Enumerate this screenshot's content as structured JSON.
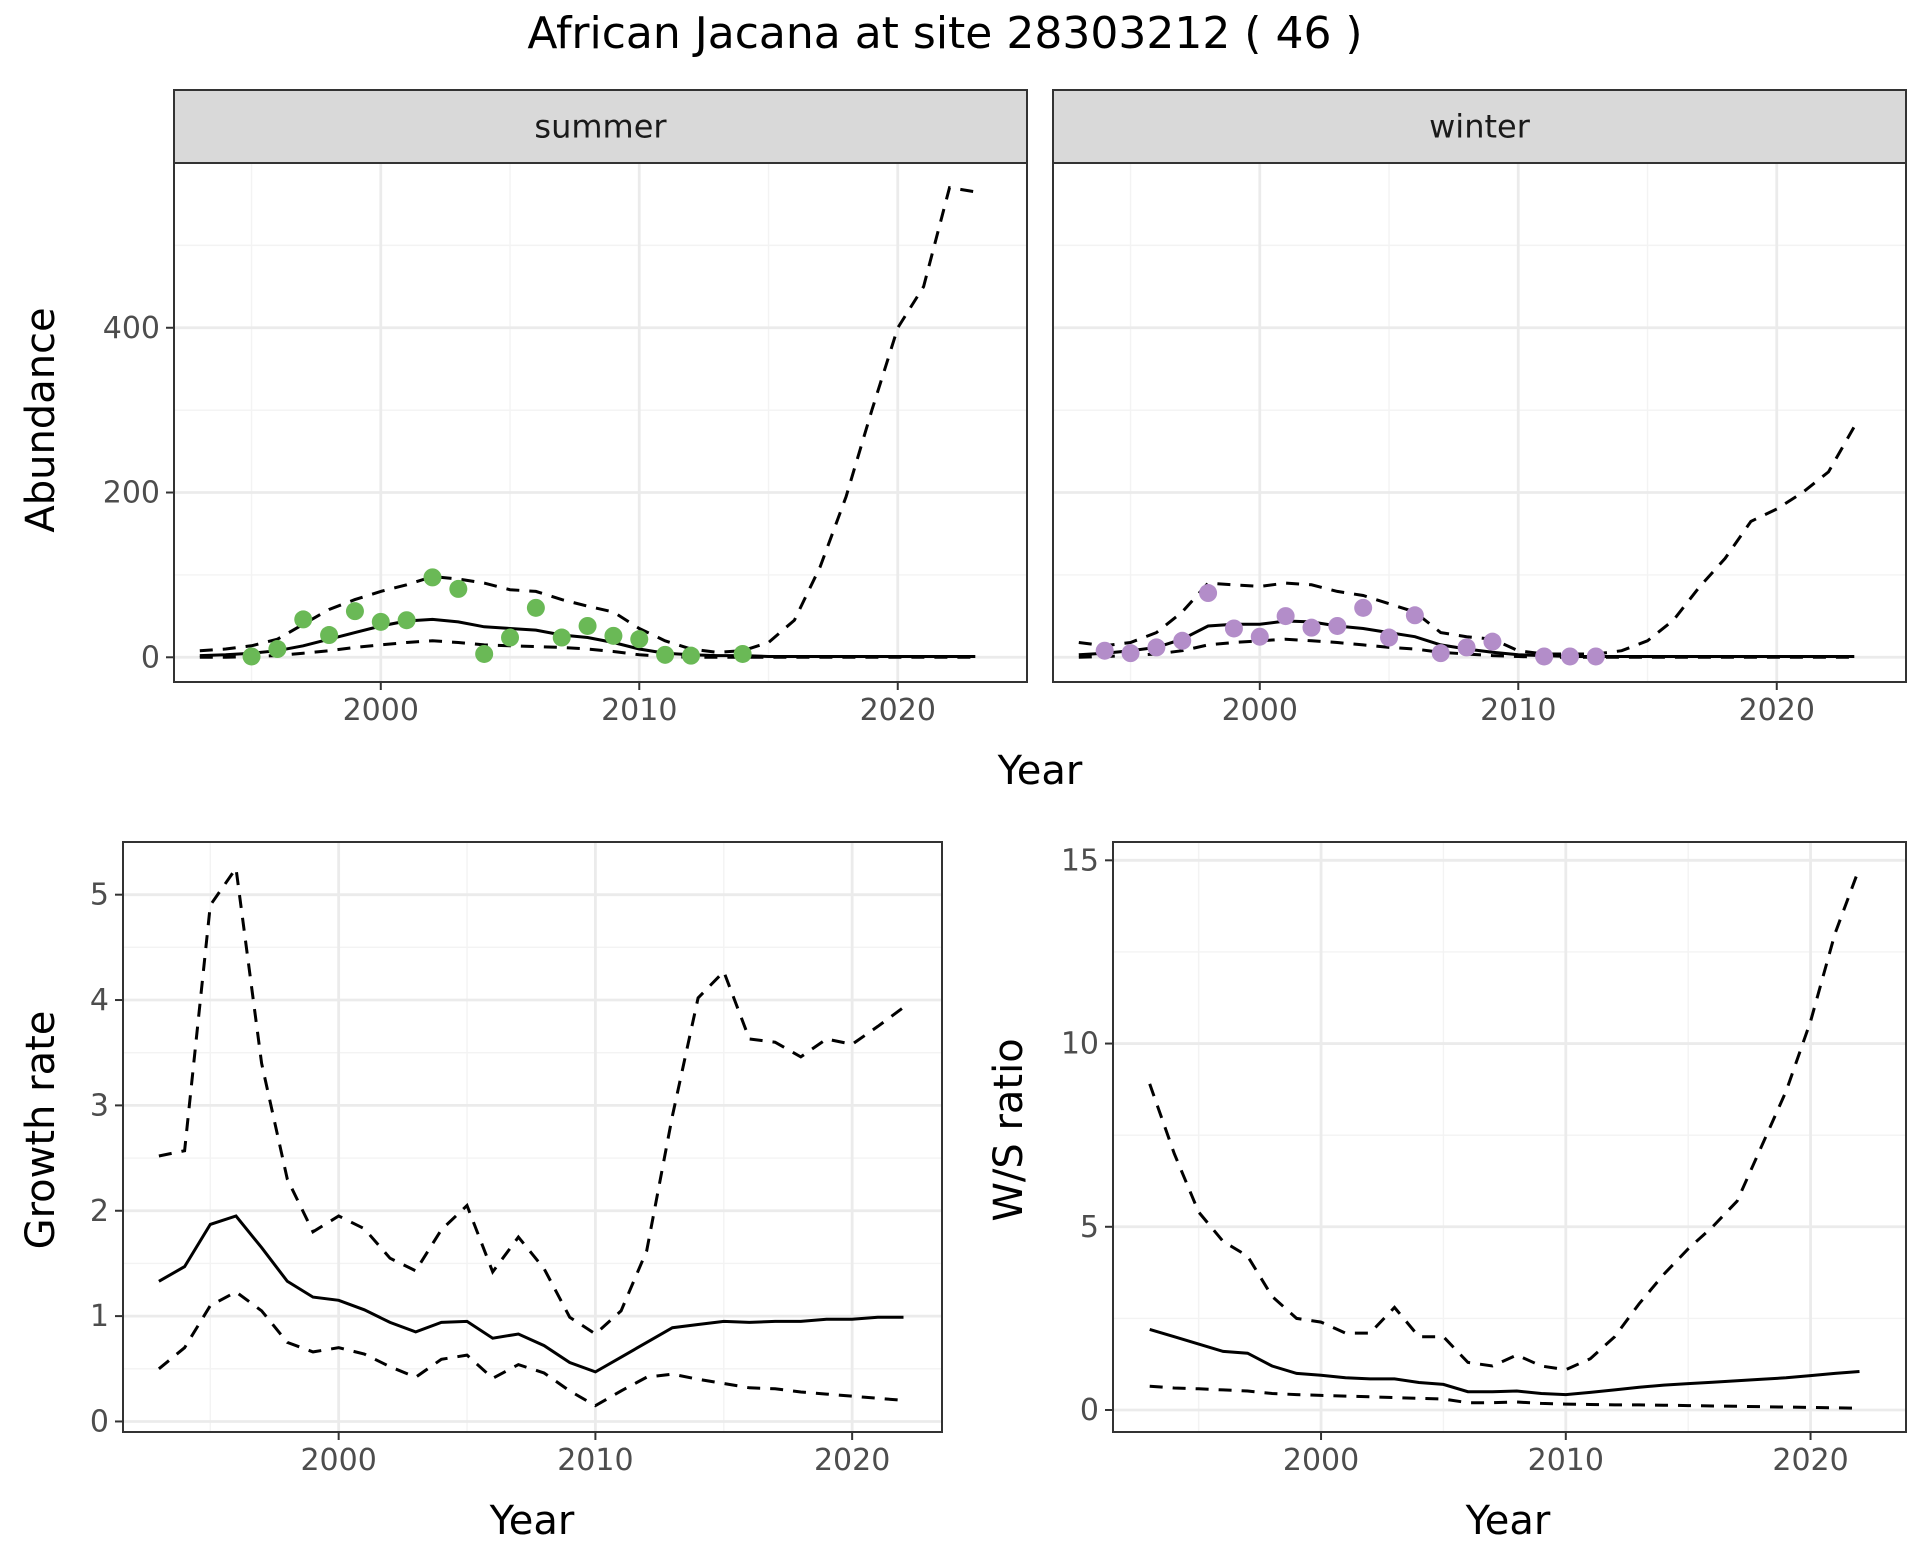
{
  "title": "African Jacana at site 28303212 ( 46 )",
  "colors": {
    "summer_points": "#6ab956",
    "winter_points": "#b38dc9",
    "lines": "#000000",
    "grid_major": "#ebebeb",
    "grid_minor": "#f3f3f3",
    "strip_fill": "#d9d9d9",
    "panel_border": "#333333"
  },
  "chart_data": [
    {
      "type": "line",
      "title": "",
      "xlabel": "Year",
      "ylabel": "Abundance",
      "xlim": [
        1992,
        2025
      ],
      "ylim": [
        -30,
        600
      ],
      "xticks": [
        2000,
        2010,
        2020
      ],
      "yticks": [
        0,
        200,
        400
      ],
      "grid": true,
      "facets": [
        {
          "label": "summer",
          "point_color": "#6ab956",
          "points": {
            "x": [
              1995,
              1996,
              1997,
              1998,
              1999,
              2000,
              2001,
              2002,
              2003,
              2004,
              2005,
              2006,
              2007,
              2008,
              2009,
              2010,
              2011,
              2012,
              2014
            ],
            "y": [
              1,
              10,
              46,
              27,
              56,
              43,
              45,
              97,
              83,
              4,
              24,
              60,
              24,
              38,
              26,
              22,
              3,
              2,
              4
            ]
          },
          "mean": {
            "x": [
              1993,
              1994,
              1995,
              1996,
              1997,
              1998,
              1999,
              2000,
              2001,
              2002,
              2003,
              2004,
              2005,
              2006,
              2007,
              2008,
              2009,
              2010,
              2011,
              2012,
              2013,
              2014,
              2015,
              2016,
              2017,
              2018,
              2019,
              2020,
              2021,
              2022,
              2023
            ],
            "y": [
              2,
              3,
              5,
              8,
              14,
              22,
              30,
              38,
              44,
              46,
              43,
              37,
              35,
              33,
              27,
              24,
              18,
              10,
              5,
              3,
              2,
              2,
              1,
              1,
              1,
              1,
              1,
              1,
              1,
              1,
              1
            ]
          },
          "upper": {
            "x": [
              1993,
              1994,
              1995,
              1996,
              1997,
              1998,
              1999,
              2000,
              2001,
              2002,
              2003,
              2004,
              2005,
              2006,
              2007,
              2008,
              2009,
              2010,
              2011,
              2012,
              2013,
              2014,
              2015,
              2016,
              2017,
              2018,
              2019,
              2020,
              2021,
              2022,
              2023
            ],
            "y": [
              8,
              10,
              14,
              22,
              40,
              58,
              70,
              80,
              88,
              98,
              95,
              90,
              82,
              80,
              70,
              62,
              55,
              35,
              20,
              10,
              6,
              8,
              18,
              45,
              110,
              195,
              300,
              400,
              450,
              570,
              565
            ]
          },
          "lower": {
            "x": [
              1993,
              1994,
              1995,
              1996,
              1997,
              1998,
              1999,
              2000,
              2001,
              2002,
              2003,
              2004,
              2005,
              2006,
              2007,
              2008,
              2009,
              2010,
              2011,
              2012,
              2013,
              2014,
              2015,
              2016,
              2017,
              2018,
              2019,
              2020,
              2021,
              2022,
              2023
            ],
            "y": [
              0,
              0,
              1,
              2,
              5,
              8,
              12,
              15,
              18,
              20,
              18,
              15,
              14,
              13,
              12,
              10,
              7,
              3,
              1,
              0,
              0,
              0,
              0,
              0,
              0,
              0,
              0,
              0,
              0,
              0,
              0
            ]
          }
        },
        {
          "label": "winter",
          "point_color": "#b38dc9",
          "points": {
            "x": [
              1994,
              1995,
              1996,
              1997,
              1998,
              1999,
              2000,
              2001,
              2002,
              2003,
              2004,
              2005,
              2006,
              2007,
              2008,
              2009,
              2011,
              2012,
              2013
            ],
            "y": [
              8,
              5,
              12,
              20,
              78,
              35,
              25,
              50,
              36,
              38,
              60,
              24,
              51,
              5,
              12,
              19,
              1,
              1,
              1
            ]
          },
          "mean": {
            "x": [
              1993,
              1994,
              1995,
              1996,
              1997,
              1998,
              1999,
              2000,
              2001,
              2002,
              2003,
              2004,
              2005,
              2006,
              2007,
              2008,
              2009,
              2010,
              2011,
              2012,
              2013,
              2014,
              2015,
              2016,
              2017,
              2018,
              2019,
              2020,
              2021,
              2022,
              2023
            ],
            "y": [
              3,
              5,
              8,
              12,
              22,
              38,
              40,
              40,
              44,
              43,
              38,
              35,
              30,
              25,
              15,
              10,
              6,
              3,
              2,
              1,
              1,
              1,
              1,
              1,
              1,
              1,
              1,
              1,
              1,
              1,
              1
            ]
          },
          "upper": {
            "x": [
              1993,
              1994,
              1995,
              1996,
              1997,
              1998,
              1999,
              2000,
              2001,
              2002,
              2003,
              2004,
              2005,
              2006,
              2007,
              2008,
              2009,
              2010,
              2011,
              2012,
              2013,
              2014,
              2015,
              2016,
              2017,
              2018,
              2019,
              2020,
              2021,
              2022,
              2023
            ],
            "y": [
              18,
              14,
              18,
              30,
              55,
              90,
              88,
              86,
              90,
              88,
              80,
              75,
              65,
              55,
              30,
              25,
              22,
              8,
              4,
              4,
              4,
              8,
              20,
              45,
              85,
              120,
              165,
              180,
              200,
              225,
              280
            ]
          },
          "lower": {
            "x": [
              1993,
              1994,
              1995,
              1996,
              1997,
              1998,
              1999,
              2000,
              2001,
              2002,
              2003,
              2004,
              2005,
              2006,
              2007,
              2008,
              2009,
              2010,
              2011,
              2012,
              2013,
              2014,
              2015,
              2016,
              2017,
              2018,
              2019,
              2020,
              2021,
              2022,
              2023
            ],
            "y": [
              0,
              1,
              2,
              4,
              8,
              15,
              18,
              20,
              22,
              20,
              18,
              15,
              12,
              10,
              6,
              4,
              2,
              1,
              0,
              0,
              0,
              0,
              0,
              0,
              0,
              0,
              0,
              0,
              0,
              0,
              0
            ]
          }
        }
      ]
    },
    {
      "type": "line",
      "title": "",
      "xlabel": "Year",
      "ylabel": "Growth rate",
      "xlim": [
        1991.6,
        2023.5
      ],
      "ylim": [
        -0.1,
        5.5
      ],
      "xticks": [
        2000,
        2010,
        2020
      ],
      "yticks": [
        0,
        1,
        2,
        3,
        4,
        5
      ],
      "grid": true,
      "mean": {
        "x": [
          1993,
          1994,
          1995,
          1996,
          1997,
          1998,
          1999,
          2000,
          2001,
          2002,
          2003,
          2004,
          2005,
          2006,
          2007,
          2008,
          2009,
          2010,
          2011,
          2012,
          2013,
          2014,
          2015,
          2016,
          2017,
          2018,
          2019,
          2020,
          2021,
          2022
        ],
        "y": [
          1.33,
          1.47,
          1.87,
          1.95,
          1.65,
          1.33,
          1.18,
          1.15,
          1.06,
          0.94,
          0.85,
          0.94,
          0.95,
          0.79,
          0.83,
          0.72,
          0.56,
          0.47,
          0.61,
          0.75,
          0.89,
          0.92,
          0.95,
          0.94,
          0.95,
          0.95,
          0.97,
          0.97,
          0.99,
          0.99
        ]
      },
      "upper": {
        "x": [
          1993,
          1994,
          1995,
          1996,
          1997,
          1998,
          1999,
          2000,
          2001,
          2002,
          2003,
          2004,
          2005,
          2006,
          2007,
          2008,
          2009,
          2010,
          2011,
          2012,
          2013,
          2014,
          2015,
          2016,
          2017,
          2018,
          2019,
          2020,
          2021,
          2022
        ],
        "y": [
          2.52,
          2.57,
          4.9,
          5.25,
          3.4,
          2.3,
          1.8,
          1.95,
          1.83,
          1.55,
          1.43,
          1.82,
          2.05,
          1.42,
          1.75,
          1.45,
          0.99,
          0.83,
          1.05,
          1.62,
          2.9,
          4.02,
          4.27,
          3.63,
          3.6,
          3.46,
          3.63,
          3.58,
          3.75,
          3.93
        ]
      },
      "lower": {
        "x": [
          1993,
          1994,
          1995,
          1996,
          1997,
          1998,
          1999,
          2000,
          2001,
          2002,
          2003,
          2004,
          2005,
          2006,
          2007,
          2008,
          2009,
          2010,
          2011,
          2012,
          2013,
          2014,
          2015,
          2016,
          2017,
          2018,
          2019,
          2020,
          2021,
          2022
        ],
        "y": [
          0.5,
          0.7,
          1.1,
          1.23,
          1.05,
          0.75,
          0.66,
          0.7,
          0.64,
          0.52,
          0.42,
          0.59,
          0.63,
          0.41,
          0.54,
          0.46,
          0.29,
          0.15,
          0.29,
          0.42,
          0.45,
          0.4,
          0.36,
          0.32,
          0.31,
          0.28,
          0.26,
          0.24,
          0.22,
          0.2
        ]
      }
    },
    {
      "type": "line",
      "title": "",
      "xlabel": "Year",
      "ylabel": "W/S ratio",
      "xlim": [
        1991.5,
        2023.9
      ],
      "ylim": [
        -0.6,
        15.5
      ],
      "xticks": [
        2000,
        2010,
        2020
      ],
      "yticks": [
        0,
        5,
        10,
        15
      ],
      "grid": true,
      "mean": {
        "x": [
          1993,
          1994,
          1995,
          1996,
          1997,
          1998,
          1999,
          2000,
          2001,
          2002,
          2003,
          2004,
          2005,
          2006,
          2007,
          2008,
          2009,
          2010,
          2011,
          2012,
          2013,
          2014,
          2015,
          2016,
          2017,
          2018,
          2019,
          2020,
          2021,
          2022
        ],
        "y": [
          2.2,
          2.0,
          1.8,
          1.6,
          1.55,
          1.2,
          1.0,
          0.95,
          0.88,
          0.85,
          0.85,
          0.75,
          0.7,
          0.5,
          0.5,
          0.52,
          0.45,
          0.42,
          0.48,
          0.55,
          0.62,
          0.68,
          0.72,
          0.76,
          0.8,
          0.84,
          0.88,
          0.94,
          1.0,
          1.05
        ]
      },
      "upper": {
        "x": [
          1993,
          1994,
          1995,
          1996,
          1997,
          1998,
          1999,
          2000,
          2001,
          2002,
          2003,
          2004,
          2005,
          2006,
          2007,
          2008,
          2009,
          2010,
          2011,
          2012,
          2013,
          2014,
          2015,
          2016,
          2017,
          2018,
          2019,
          2020,
          2021,
          2022
        ],
        "y": [
          8.9,
          7.0,
          5.4,
          4.6,
          4.2,
          3.1,
          2.5,
          2.4,
          2.1,
          2.1,
          2.8,
          2.0,
          2.0,
          1.3,
          1.2,
          1.5,
          1.2,
          1.1,
          1.4,
          2.0,
          2.9,
          3.7,
          4.4,
          5.0,
          5.7,
          7.2,
          8.7,
          10.6,
          13.0,
          14.8
        ]
      },
      "lower": {
        "x": [
          1993,
          1994,
          1995,
          1996,
          1997,
          1998,
          1999,
          2000,
          2001,
          2002,
          2003,
          2004,
          2005,
          2006,
          2007,
          2008,
          2009,
          2010,
          2011,
          2012,
          2013,
          2014,
          2015,
          2016,
          2017,
          2018,
          2019,
          2020,
          2021,
          2022
        ],
        "y": [
          0.65,
          0.6,
          0.58,
          0.55,
          0.52,
          0.45,
          0.42,
          0.4,
          0.38,
          0.36,
          0.34,
          0.32,
          0.3,
          0.2,
          0.2,
          0.22,
          0.18,
          0.16,
          0.15,
          0.14,
          0.14,
          0.13,
          0.12,
          0.11,
          0.1,
          0.09,
          0.08,
          0.07,
          0.06,
          0.05
        ]
      }
    }
  ]
}
